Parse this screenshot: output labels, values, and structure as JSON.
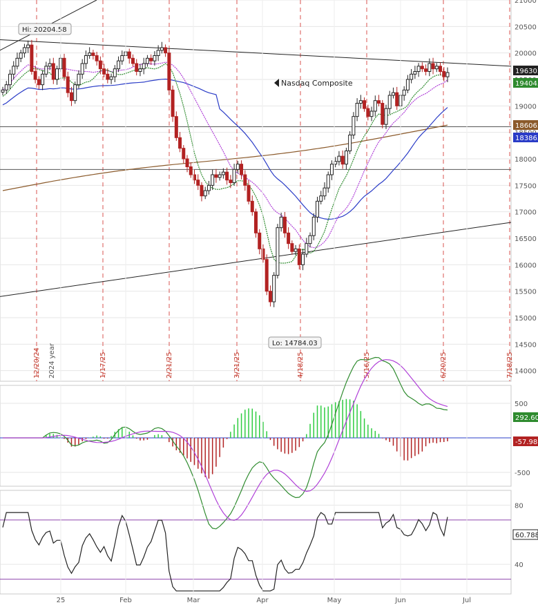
{
  "chart_data": [
    {
      "type": "candlestick",
      "title": "Nasdaq Composite",
      "ylim": [
        13800,
        21000
      ],
      "y_ticks": [
        14000,
        14500,
        15000,
        15500,
        16000,
        16500,
        17000,
        17500,
        18000,
        18500,
        19000,
        19500,
        20000,
        20500,
        21000
      ],
      "x_ticks": [
        "25",
        "Feb",
        "Mar",
        "Apr",
        "May",
        "Jun",
        "Jul"
      ],
      "vertical_date_markers": [
        "12/20/24",
        "1/17/25",
        "2/21/25",
        "3/21/25",
        "4/18/25",
        "5/16/25",
        "6/20/25",
        "7/18/25"
      ],
      "year_label": "2024 year",
      "annotations": [
        {
          "text": "Hi: 20204.58",
          "value": 20204.58
        },
        {
          "text": "Lo: 14784.03",
          "value": 14784.03
        }
      ],
      "horizontal_lines": [
        18606,
        17800
      ],
      "price_labels": [
        {
          "text": "19630.",
          "color": "#222222"
        },
        {
          "text": "19404.",
          "color": "#2e8b2e"
        },
        {
          "text": "18606.",
          "color": "#8b5a2b"
        },
        {
          "text": "18386.",
          "color": "#2a3cc7"
        }
      ],
      "close_series": [
        19300,
        19400,
        19600,
        19750,
        19900,
        20000,
        20100,
        20150,
        19650,
        19500,
        19400,
        19600,
        19750,
        19800,
        19500,
        19700,
        19900,
        19550,
        19250,
        19100,
        19400,
        19600,
        19800,
        19950,
        20000,
        19950,
        19850,
        19700,
        19600,
        19500,
        19550,
        19700,
        19850,
        19950,
        20020,
        19900,
        19800,
        19650,
        19700,
        19800,
        19900,
        19850,
        19950,
        20050,
        20100,
        20000,
        19300,
        18800,
        18400,
        18200,
        18000,
        17850,
        17700,
        17600,
        17500,
        17300,
        17400,
        17500,
        17700,
        17650,
        17700,
        17750,
        17600,
        17550,
        17800,
        17900,
        17700,
        17500,
        17200,
        17000,
        16600,
        16300,
        16100,
        15500,
        15300,
        15800,
        16700,
        16900,
        16600,
        16400,
        16250,
        16300,
        16000,
        16200,
        16400,
        16550,
        16900,
        17200,
        17300,
        17450,
        17700,
        17900,
        17950,
        18050,
        17900,
        18150,
        18450,
        18800,
        19050,
        19100,
        18950,
        18800,
        18900,
        19100,
        19050,
        18650,
        18950,
        19200,
        19250,
        19000,
        19200,
        19300,
        19500,
        19600,
        19650,
        19750,
        19700,
        19650,
        19800,
        19700,
        19750,
        19650,
        19550,
        19630
      ],
      "overlays": {
        "ma_200_end": 18606,
        "ma_50_end": 18386,
        "sar_end": 19404
      }
    },
    {
      "type": "line",
      "title": "",
      "series": [
        {
          "name": "",
          "values": [
            292.6
          ]
        },
        {
          "name": "",
          "values": [
            -57.98
          ]
        }
      ],
      "y_ticks": [
        500,
        -500
      ],
      "value_labels": [
        {
          "text": "292.60",
          "color": "#2e8b2e"
        },
        {
          "text": "-57.98",
          "color": "#b22222"
        }
      ]
    },
    {
      "type": "line",
      "title": "",
      "y_ticks": [
        80,
        40
      ],
      "reference_levels": [
        70,
        30
      ],
      "value_label": "60.788"
    }
  ]
}
